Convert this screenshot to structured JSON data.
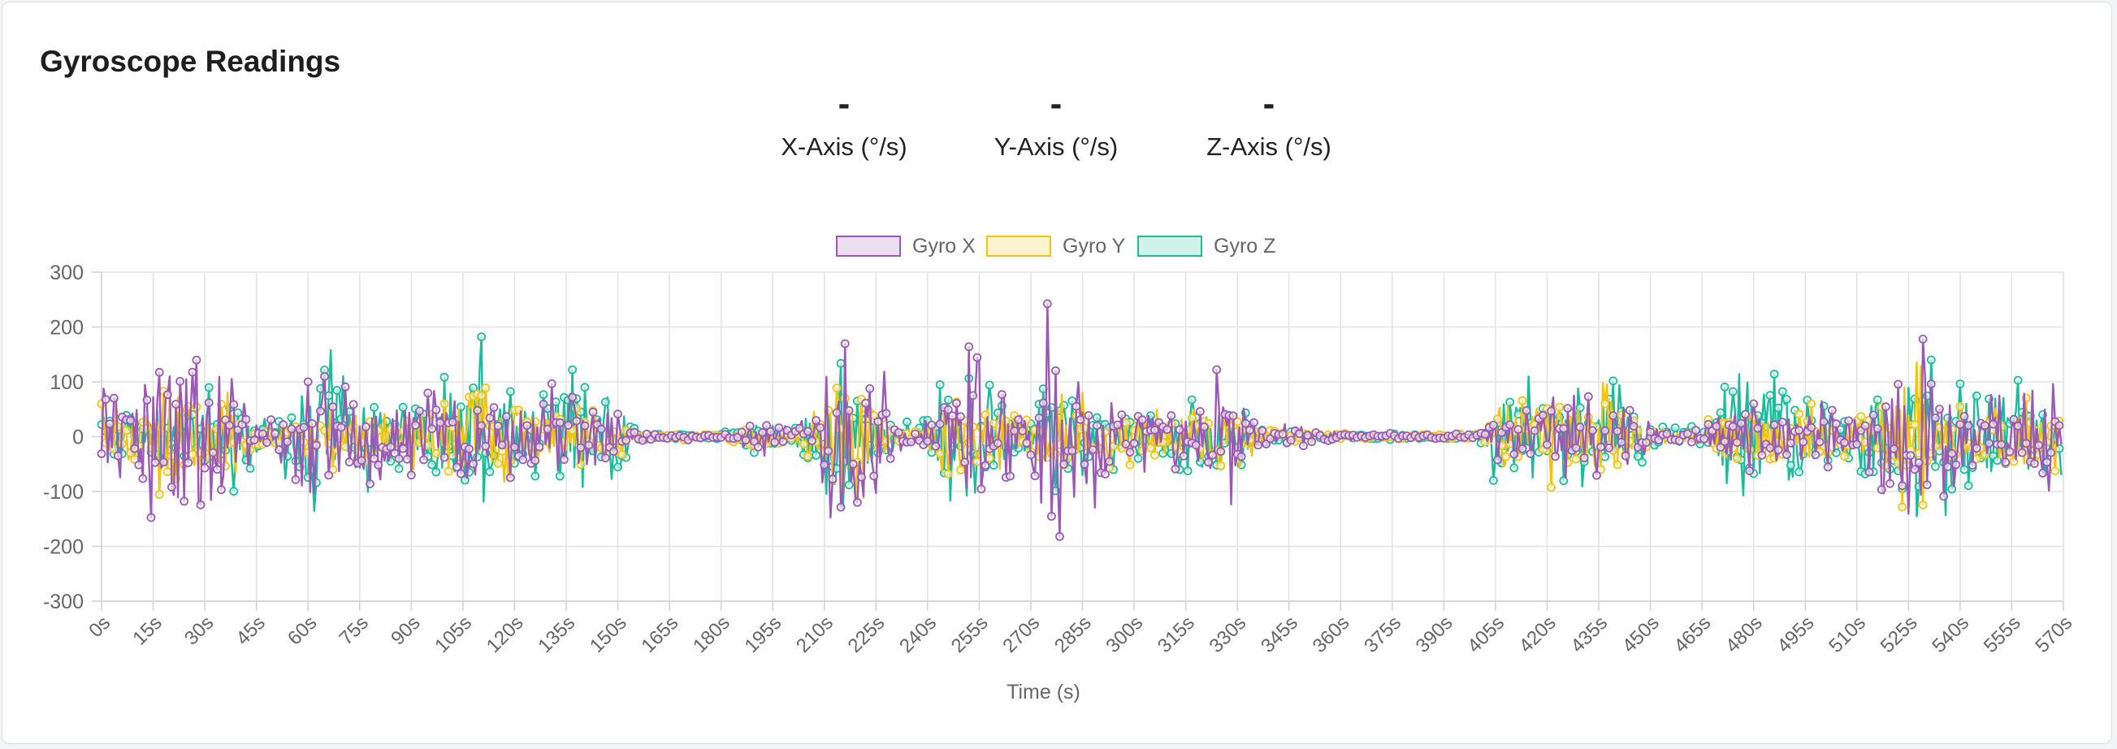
{
  "card": {
    "title": "Gyroscope Readings"
  },
  "readings": [
    {
      "value": "-",
      "label": "X-Axis (°/s)"
    },
    {
      "value": "-",
      "label": "Y-Axis (°/s)"
    },
    {
      "value": "-",
      "label": "Z-Axis (°/s)"
    }
  ],
  "chart_data": {
    "type": "line",
    "title": "",
    "xlabel": "Time (s)",
    "ylabel": "",
    "xlim": [
      0,
      570
    ],
    "ylim": [
      -300,
      300
    ],
    "y_ticks": [
      300,
      200,
      100,
      0,
      -100,
      -200,
      -300
    ],
    "x_ticks": [
      "0s",
      "15s",
      "30s",
      "45s",
      "60s",
      "75s",
      "90s",
      "105s",
      "120s",
      "135s",
      "150s",
      "165s",
      "180s",
      "195s",
      "210s",
      "225s",
      "240s",
      "255s",
      "270s",
      "285s",
      "300s",
      "315s",
      "330s",
      "345s",
      "360s",
      "375s",
      "390s",
      "405s",
      "420s",
      "435s",
      "450s",
      "465s",
      "480s",
      "495s",
      "510s",
      "525s",
      "540s",
      "555s",
      "570s"
    ],
    "grid": true,
    "legend": "top-center",
    "series": [
      {
        "name": "Gyro X",
        "color": "#9b59b6",
        "fill": "rgba(155,89,182,0.2)",
        "envelope": [
          [
            0,
            140
          ],
          [
            5,
            110
          ],
          [
            10,
            130
          ],
          [
            15,
            150
          ],
          [
            20,
            250
          ],
          [
            25,
            240
          ],
          [
            30,
            200
          ],
          [
            35,
            150
          ],
          [
            40,
            70
          ],
          [
            45,
            35
          ],
          [
            50,
            30
          ],
          [
            55,
            70
          ],
          [
            60,
            100
          ],
          [
            65,
            110
          ],
          [
            70,
            90
          ],
          [
            75,
            95
          ],
          [
            80,
            80
          ],
          [
            85,
            70
          ],
          [
            90,
            70
          ],
          [
            95,
            80
          ],
          [
            100,
            90
          ],
          [
            105,
            110
          ],
          [
            110,
            110
          ],
          [
            115,
            90
          ],
          [
            120,
            70
          ],
          [
            125,
            80
          ],
          [
            130,
            90
          ],
          [
            135,
            130
          ],
          [
            140,
            85
          ],
          [
            145,
            85
          ],
          [
            150,
            60
          ],
          [
            155,
            12
          ],
          [
            160,
            8
          ],
          [
            170,
            6
          ],
          [
            180,
            6
          ],
          [
            185,
            8
          ],
          [
            190,
            40
          ],
          [
            195,
            30
          ],
          [
            200,
            15
          ],
          [
            205,
            35
          ],
          [
            210,
            90
          ],
          [
            215,
            250
          ],
          [
            220,
            250
          ],
          [
            225,
            200
          ],
          [
            230,
            30
          ],
          [
            235,
            20
          ],
          [
            240,
            30
          ],
          [
            245,
            90
          ],
          [
            250,
            120
          ],
          [
            255,
            230
          ],
          [
            260,
            80
          ],
          [
            265,
            70
          ],
          [
            270,
            60
          ],
          [
            275,
            250
          ],
          [
            280,
            150
          ],
          [
            285,
            180
          ],
          [
            290,
            110
          ],
          [
            295,
            80
          ],
          [
            300,
            70
          ],
          [
            305,
            60
          ],
          [
            310,
            65
          ],
          [
            315,
            50
          ],
          [
            320,
            90
          ],
          [
            325,
            130
          ],
          [
            330,
            120
          ],
          [
            335,
            50
          ],
          [
            340,
            15
          ],
          [
            345,
            25
          ],
          [
            350,
            15
          ],
          [
            360,
            8
          ],
          [
            370,
            6
          ],
          [
            380,
            6
          ],
          [
            390,
            5
          ],
          [
            400,
            5
          ],
          [
            405,
            40
          ],
          [
            410,
            60
          ],
          [
            415,
            70
          ],
          [
            420,
            70
          ],
          [
            425,
            75
          ],
          [
            430,
            75
          ],
          [
            435,
            70
          ],
          [
            440,
            60
          ],
          [
            445,
            45
          ],
          [
            450,
            25
          ],
          [
            455,
            12
          ],
          [
            460,
            15
          ],
          [
            465,
            20
          ],
          [
            470,
            55
          ],
          [
            475,
            70
          ],
          [
            480,
            60
          ],
          [
            485,
            65
          ],
          [
            490,
            60
          ],
          [
            495,
            60
          ],
          [
            500,
            65
          ],
          [
            505,
            35
          ],
          [
            510,
            50
          ],
          [
            515,
            70
          ],
          [
            520,
            130
          ],
          [
            525,
            220
          ],
          [
            530,
            170
          ],
          [
            535,
            110
          ],
          [
            540,
            80
          ],
          [
            545,
            80
          ],
          [
            550,
            75
          ],
          [
            555,
            75
          ],
          [
            560,
            80
          ],
          [
            565,
            100
          ],
          [
            570,
            90
          ]
        ]
      },
      {
        "name": "Gyro Y",
        "color": "#f1c40f",
        "fill": "rgba(241,196,15,0.2)",
        "envelope": [
          [
            0,
            60
          ],
          [
            10,
            70
          ],
          [
            15,
            80
          ],
          [
            20,
            150
          ],
          [
            25,
            110
          ],
          [
            30,
            90
          ],
          [
            35,
            90
          ],
          [
            40,
            60
          ],
          [
            45,
            30
          ],
          [
            50,
            20
          ],
          [
            55,
            40
          ],
          [
            60,
            60
          ],
          [
            70,
            60
          ],
          [
            80,
            70
          ],
          [
            90,
            60
          ],
          [
            100,
            60
          ],
          [
            105,
            80
          ],
          [
            110,
            160
          ],
          [
            115,
            90
          ],
          [
            120,
            70
          ],
          [
            125,
            80
          ],
          [
            130,
            60
          ],
          [
            140,
            50
          ],
          [
            150,
            40
          ],
          [
            155,
            8
          ],
          [
            165,
            6
          ],
          [
            180,
            6
          ],
          [
            190,
            30
          ],
          [
            200,
            15
          ],
          [
            205,
            35
          ],
          [
            210,
            60
          ],
          [
            215,
            100
          ],
          [
            220,
            120
          ],
          [
            225,
            90
          ],
          [
            230,
            20
          ],
          [
            240,
            20
          ],
          [
            245,
            70
          ],
          [
            250,
            60
          ],
          [
            255,
            80
          ],
          [
            260,
            60
          ],
          [
            270,
            50
          ],
          [
            280,
            80
          ],
          [
            285,
            80
          ],
          [
            290,
            60
          ],
          [
            300,
            50
          ],
          [
            315,
            50
          ],
          [
            320,
            100
          ],
          [
            325,
            80
          ],
          [
            330,
            60
          ],
          [
            335,
            30
          ],
          [
            340,
            10
          ],
          [
            360,
            6
          ],
          [
            380,
            5
          ],
          [
            400,
            5
          ],
          [
            405,
            50
          ],
          [
            410,
            60
          ],
          [
            415,
            70
          ],
          [
            420,
            90
          ],
          [
            425,
            100
          ],
          [
            430,
            100
          ],
          [
            435,
            100
          ],
          [
            440,
            90
          ],
          [
            445,
            50
          ],
          [
            450,
            20
          ],
          [
            455,
            10
          ],
          [
            465,
            15
          ],
          [
            470,
            60
          ],
          [
            480,
            60
          ],
          [
            490,
            60
          ],
          [
            500,
            60
          ],
          [
            505,
            30
          ],
          [
            510,
            50
          ],
          [
            520,
            90
          ],
          [
            525,
            150
          ],
          [
            530,
            120
          ],
          [
            535,
            100
          ],
          [
            540,
            80
          ],
          [
            550,
            75
          ],
          [
            560,
            70
          ],
          [
            570,
            60
          ]
        ]
      },
      {
        "name": "Gyro Z",
        "color": "#1abc9c",
        "fill": "rgba(26,188,156,0.2)",
        "envelope": [
          [
            0,
            50
          ],
          [
            10,
            60
          ],
          [
            20,
            80
          ],
          [
            25,
            90
          ],
          [
            30,
            80
          ],
          [
            35,
            120
          ],
          [
            40,
            90
          ],
          [
            45,
            40
          ],
          [
            50,
            25
          ],
          [
            55,
            100
          ],
          [
            60,
            110
          ],
          [
            65,
            180
          ],
          [
            70,
            110
          ],
          [
            75,
            120
          ],
          [
            80,
            80
          ],
          [
            85,
            90
          ],
          [
            90,
            80
          ],
          [
            95,
            90
          ],
          [
            100,
            110
          ],
          [
            105,
            130
          ],
          [
            110,
            190
          ],
          [
            115,
            90
          ],
          [
            120,
            80
          ],
          [
            125,
            70
          ],
          [
            130,
            80
          ],
          [
            135,
            140
          ],
          [
            140,
            90
          ],
          [
            145,
            90
          ],
          [
            150,
            140
          ],
          [
            155,
            10
          ],
          [
            165,
            6
          ],
          [
            180,
            6
          ],
          [
            190,
            30
          ],
          [
            195,
            20
          ],
          [
            200,
            15
          ],
          [
            205,
            60
          ],
          [
            210,
            90
          ],
          [
            215,
            210
          ],
          [
            220,
            110
          ],
          [
            225,
            70
          ],
          [
            230,
            25
          ],
          [
            240,
            30
          ],
          [
            245,
            120
          ],
          [
            250,
            110
          ],
          [
            255,
            100
          ],
          [
            260,
            90
          ],
          [
            265,
            70
          ],
          [
            270,
            80
          ],
          [
            275,
            90
          ],
          [
            280,
            110
          ],
          [
            285,
            70
          ],
          [
            290,
            60
          ],
          [
            300,
            60
          ],
          [
            310,
            60
          ],
          [
            315,
            60
          ],
          [
            320,
            80
          ],
          [
            325,
            80
          ],
          [
            330,
            60
          ],
          [
            335,
            25
          ],
          [
            340,
            10
          ],
          [
            360,
            6
          ],
          [
            380,
            5
          ],
          [
            400,
            5
          ],
          [
            405,
            90
          ],
          [
            410,
            110
          ],
          [
            415,
            110
          ],
          [
            420,
            90
          ],
          [
            425,
            80
          ],
          [
            430,
            90
          ],
          [
            435,
            110
          ],
          [
            440,
            100
          ],
          [
            445,
            70
          ],
          [
            450,
            25
          ],
          [
            455,
            15
          ],
          [
            465,
            20
          ],
          [
            470,
            140
          ],
          [
            475,
            180
          ],
          [
            480,
            120
          ],
          [
            485,
            110
          ],
          [
            490,
            130
          ],
          [
            495,
            110
          ],
          [
            500,
            90
          ],
          [
            505,
            35
          ],
          [
            510,
            90
          ],
          [
            515,
            110
          ],
          [
            520,
            130
          ],
          [
            525,
            150
          ],
          [
            530,
            140
          ],
          [
            535,
            140
          ],
          [
            540,
            160
          ],
          [
            545,
            110
          ],
          [
            550,
            100
          ],
          [
            555,
            110
          ],
          [
            560,
            90
          ],
          [
            565,
            70
          ],
          [
            570,
            70
          ]
        ]
      }
    ]
  }
}
